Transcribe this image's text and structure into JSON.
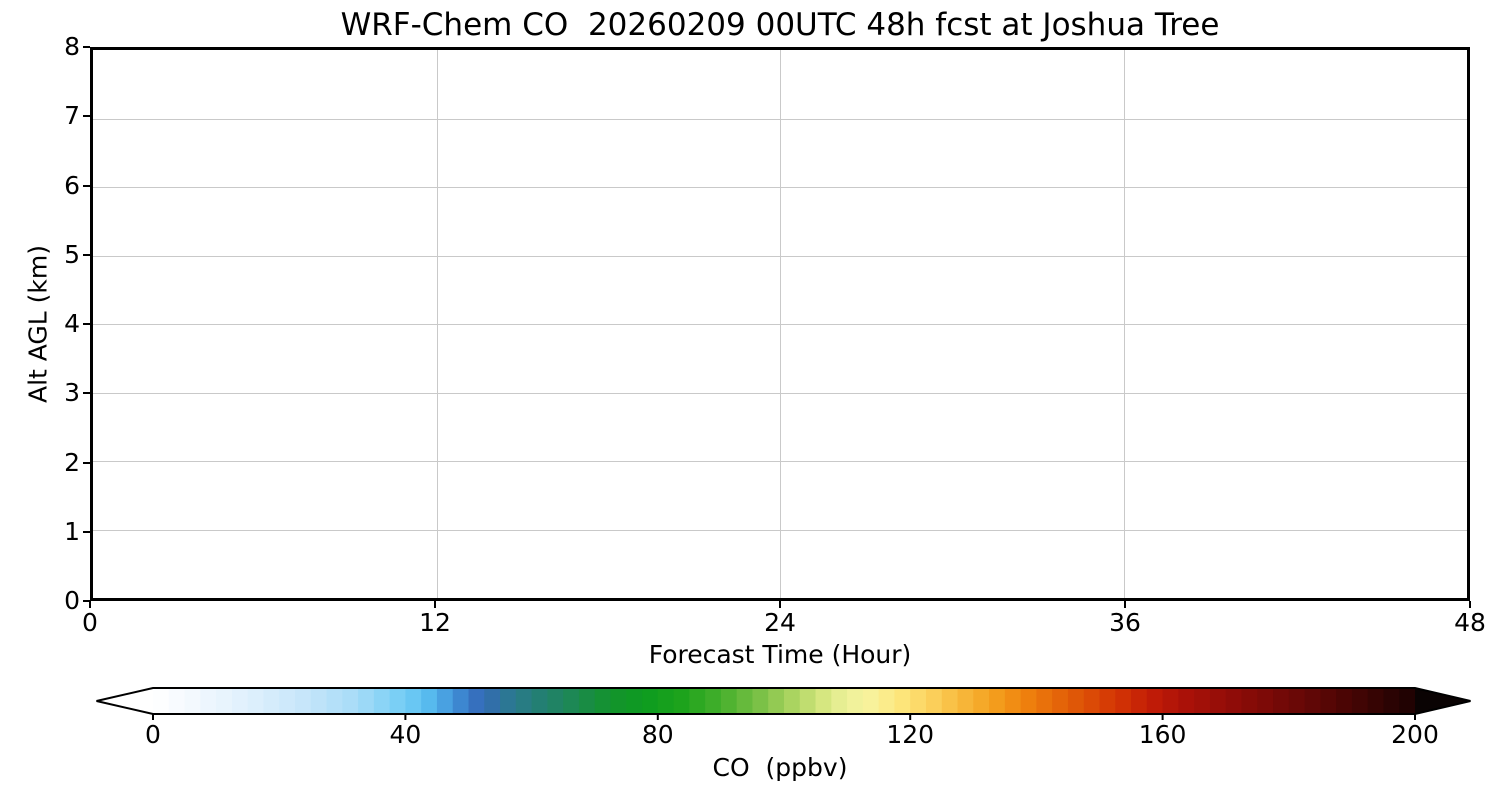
{
  "figure": {
    "background": "#ffffff",
    "frame_color": "#000000"
  },
  "chart_data": {
    "type": "heatmap",
    "title": "WRF-Chem CO  20260209 00UTC 48h fcst at Joshua Tree",
    "xlabel": "Forecast Time (Hour)",
    "ylabel": "Alt AGL (km)",
    "xlim": [
      0,
      48
    ],
    "ylim": [
      0,
      8
    ],
    "x_ticks": [
      0,
      12,
      24,
      36,
      48
    ],
    "y_ticks": [
      0,
      1,
      2,
      3,
      4,
      5,
      6,
      7,
      8
    ],
    "grid": true,
    "grid_color": "#c9c9c9",
    "plot_field": "empty - entire cross-section renders white (no CO values above lowest color level visible)",
    "colorbar": {
      "label": "CO  (ppbv)",
      "ticks": [
        0,
        40,
        80,
        120,
        160,
        200
      ],
      "range": [
        0,
        200
      ],
      "segment_step": 2.5,
      "extend": "both",
      "under_arrow_color": "#ffffff",
      "over_arrow_color": "#0a0303",
      "outline_color": "#000000",
      "gradient_stops": [
        [
          0,
          "#ffffff"
        ],
        [
          8,
          "#eff7fe"
        ],
        [
          16,
          "#ddeffc"
        ],
        [
          24,
          "#c6e6fa"
        ],
        [
          32,
          "#a8dcf8"
        ],
        [
          40,
          "#72cdf5"
        ],
        [
          44,
          "#55b9ee"
        ],
        [
          48,
          "#3f8ed6"
        ],
        [
          52,
          "#3469b8"
        ],
        [
          57,
          "#2b7a8e"
        ],
        [
          62,
          "#22806e"
        ],
        [
          67,
          "#1c8950"
        ],
        [
          72,
          "#14922f"
        ],
        [
          78,
          "#0d9c1f"
        ],
        [
          84,
          "#1ea31c"
        ],
        [
          90,
          "#45b02c"
        ],
        [
          96,
          "#79c046"
        ],
        [
          101,
          "#a8d35e"
        ],
        [
          106,
          "#d4e67e"
        ],
        [
          110,
          "#eef29b"
        ],
        [
          114,
          "#f9f29b"
        ],
        [
          118,
          "#fde87f"
        ],
        [
          123,
          "#fbd35f"
        ],
        [
          128,
          "#f8b93c"
        ],
        [
          133,
          "#f4a01e"
        ],
        [
          138,
          "#ef830e"
        ],
        [
          143,
          "#e56809"
        ],
        [
          148,
          "#dc4e06"
        ],
        [
          153,
          "#d23305"
        ],
        [
          158,
          "#c21d07"
        ],
        [
          163,
          "#ad1208"
        ],
        [
          170,
          "#930d08"
        ],
        [
          177,
          "#7a0a07"
        ],
        [
          184,
          "#5f0706"
        ],
        [
          190,
          "#460504"
        ],
        [
          195,
          "#300303"
        ],
        [
          200,
          "#1c0202"
        ]
      ]
    }
  }
}
